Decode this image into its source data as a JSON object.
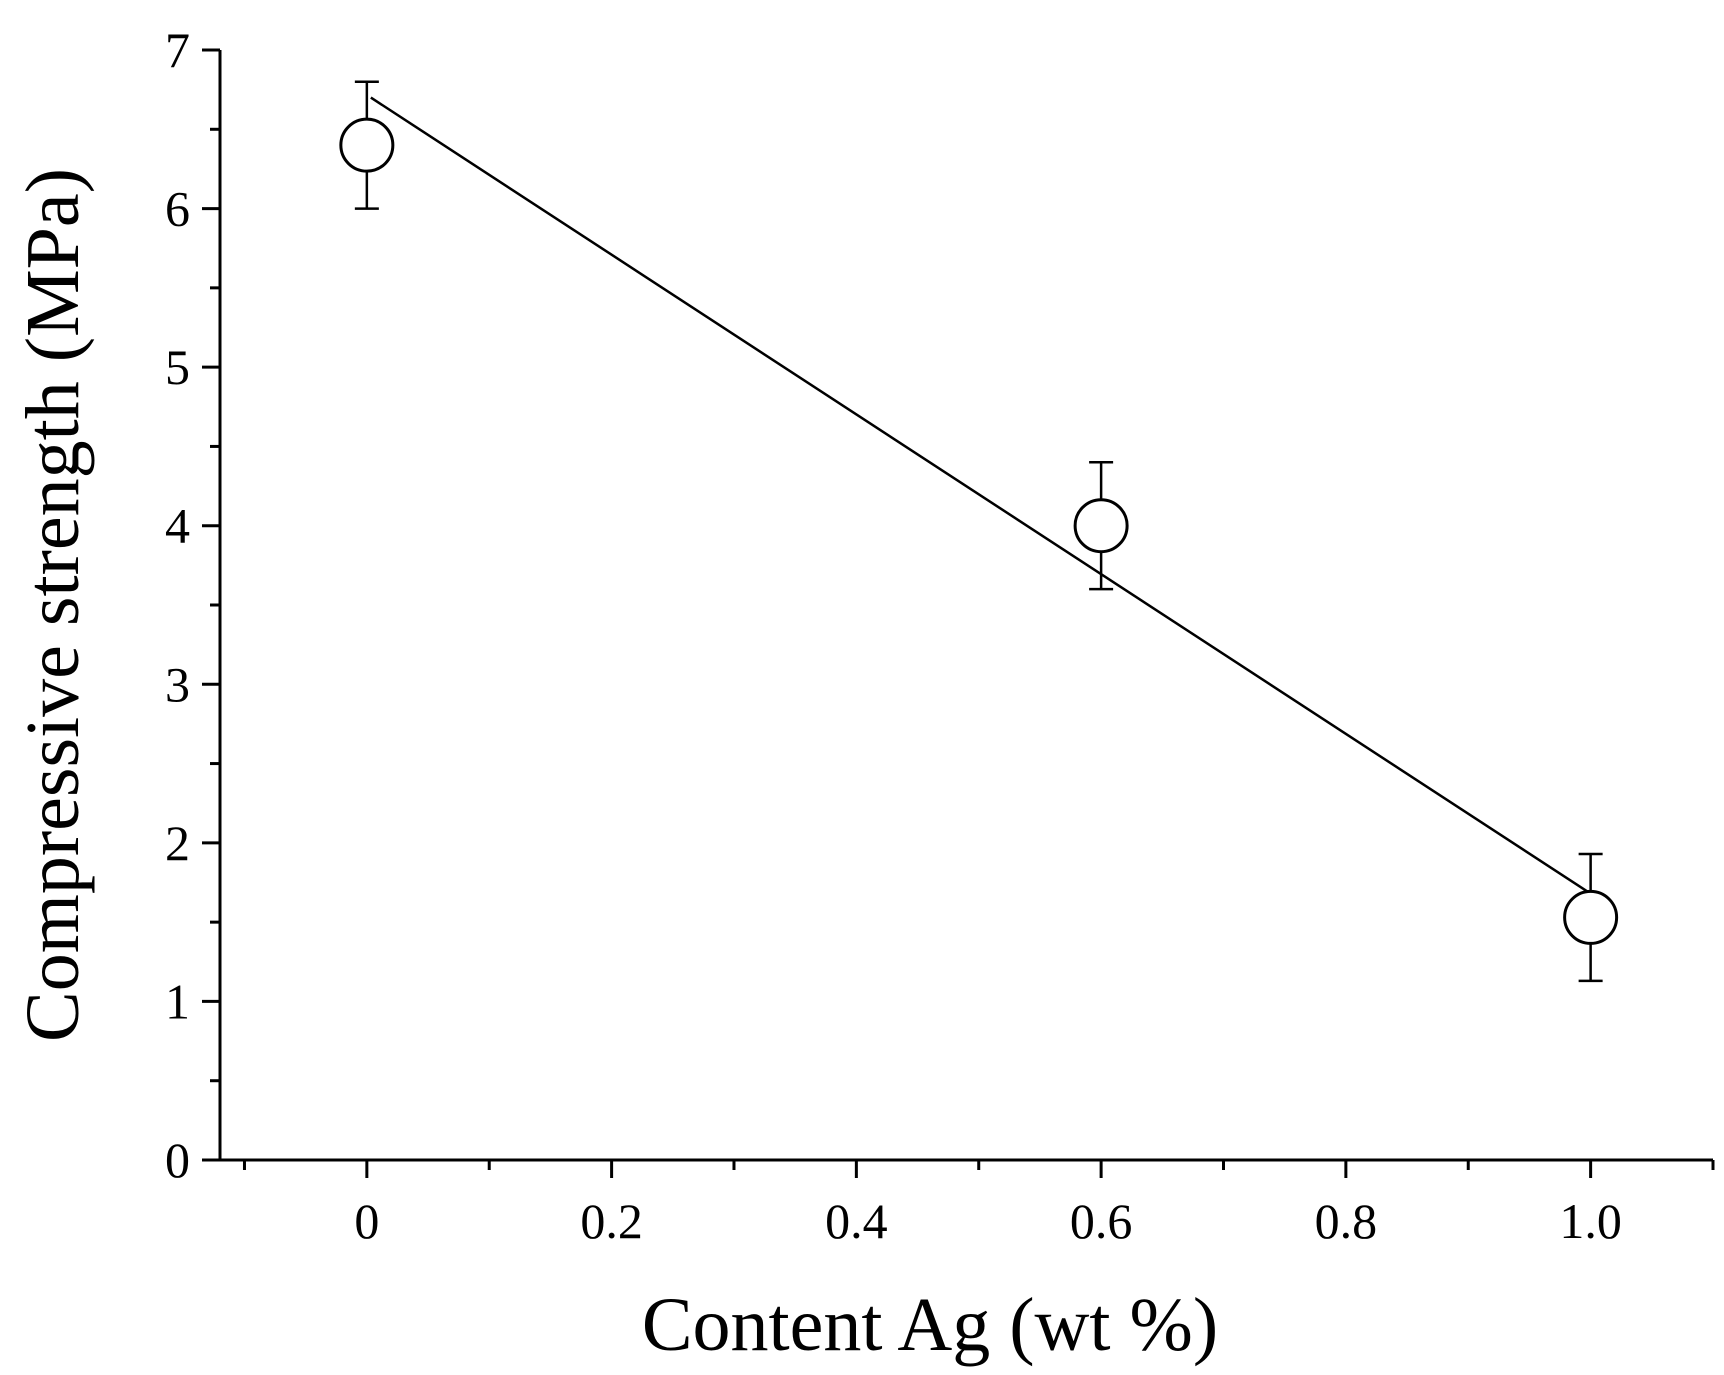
{
  "chart_data": {
    "type": "scatter",
    "title": "",
    "xlabel": "Content Ag (wt %)",
    "ylabel": "Compressive strength (MPa)",
    "xlim": [
      -0.12,
      1.1
    ],
    "ylim": [
      0,
      7
    ],
    "x_ticks": [
      {
        "value": 0,
        "label": "0"
      },
      {
        "value": 0.2,
        "label": "0.2"
      },
      {
        "value": 0.4,
        "label": "0.4"
      },
      {
        "value": 0.6,
        "label": "0.6"
      },
      {
        "value": 0.8,
        "label": "0.8"
      },
      {
        "value": 1.0,
        "label": "1.0"
      }
    ],
    "x_minor_ticks": [
      -0.1,
      0.1,
      0.3,
      0.5,
      0.7,
      0.9,
      1.1
    ],
    "y_ticks": [
      {
        "value": 0,
        "label": "0"
      },
      {
        "value": 1,
        "label": "1"
      },
      {
        "value": 2,
        "label": "2"
      },
      {
        "value": 3,
        "label": "3"
      },
      {
        "value": 4,
        "label": "4"
      },
      {
        "value": 5,
        "label": "5"
      },
      {
        "value": 6,
        "label": "6"
      },
      {
        "value": 7,
        "label": "7"
      }
    ],
    "y_minor_ticks": [
      0.5,
      1.5,
      2.5,
      3.5,
      4.5,
      5.5,
      6.5
    ],
    "grid": false,
    "legend": "none",
    "points": [
      {
        "x": 0,
        "y": 6.4,
        "err_low": 0.4,
        "err_high": 0.4
      },
      {
        "x": 0.6,
        "y": 4.0,
        "err_low": 0.4,
        "err_high": 0.4
      },
      {
        "x": 1.0,
        "y": 1.53,
        "err_low": 0.4,
        "err_high": 0.4
      }
    ],
    "fit_line": {
      "x": [
        0,
        1.0
      ],
      "y": [
        6.7,
        1.68
      ]
    },
    "marker": "open-circle",
    "color": "#000000"
  }
}
